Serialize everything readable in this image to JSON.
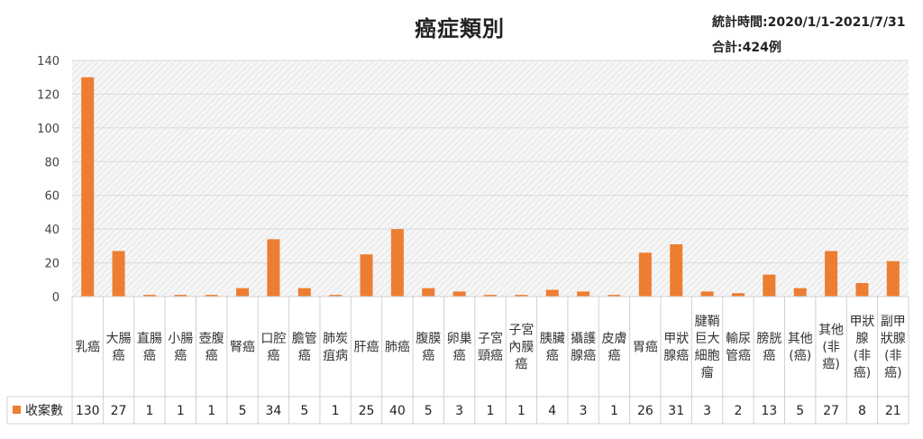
{
  "header": {
    "stat_time": "統計時間:2020/1/1-2021/7/31",
    "stat_total": "合計:424例"
  },
  "chart_data": {
    "type": "bar",
    "title": "癌症類別",
    "xlabel": "",
    "ylabel": "",
    "ylim": [
      0,
      140
    ],
    "yticks": [
      0,
      20,
      40,
      60,
      80,
      100,
      120,
      140
    ],
    "grid": true,
    "legend": "bottom-left",
    "bar_color": "#ED7D31",
    "categories": [
      [
        "乳癌"
      ],
      [
        "大腸",
        "癌"
      ],
      [
        "直腸",
        "癌"
      ],
      [
        "小腸",
        "癌"
      ],
      [
        "壺腹",
        "癌"
      ],
      [
        "腎癌"
      ],
      [
        "口腔",
        "癌"
      ],
      [
        "膽管",
        "癌"
      ],
      [
        "肺炭",
        "疽病"
      ],
      [
        "肝癌"
      ],
      [
        "肺癌"
      ],
      [
        "腹膜",
        "癌"
      ],
      [
        "卵巢",
        "癌"
      ],
      [
        "子宮",
        "頸癌"
      ],
      [
        "子宮",
        "內膜",
        "癌"
      ],
      [
        "胰臟",
        "癌"
      ],
      [
        "攝護",
        "腺癌"
      ],
      [
        "皮膚",
        "癌"
      ],
      [
        "胃癌"
      ],
      [
        "甲狀",
        "腺癌"
      ],
      [
        "腱鞘",
        "巨大",
        "細胞",
        "瘤"
      ],
      [
        "輸尿",
        "管癌"
      ],
      [
        "膀胱",
        "癌"
      ],
      [
        "其他",
        "(癌)"
      ],
      [
        "其他",
        "(非",
        "癌)"
      ],
      [
        "甲狀",
        "腺",
        "(非",
        "癌)"
      ],
      [
        "副甲",
        "狀腺",
        "(非",
        "癌)"
      ]
    ],
    "series": [
      {
        "name": "收案數",
        "values": [
          130,
          27,
          1,
          1,
          1,
          5,
          34,
          5,
          1,
          25,
          40,
          5,
          3,
          1,
          1,
          4,
          3,
          1,
          26,
          31,
          3,
          2,
          13,
          5,
          27,
          8,
          21
        ]
      }
    ]
  }
}
